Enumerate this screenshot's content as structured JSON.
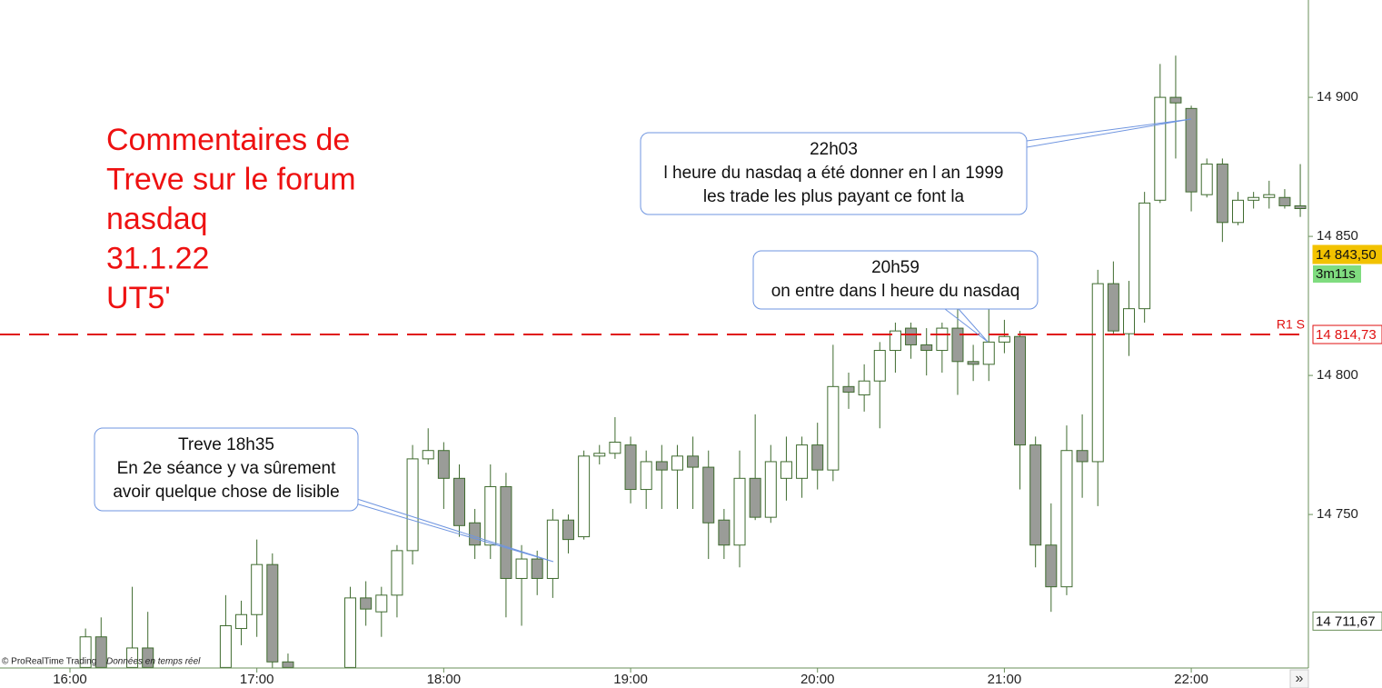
{
  "chart_data": {
    "type": "candlestick",
    "annotation_title": [
      "Commentaires de",
      "Treve sur le forum",
      "nasdaq",
      "31.1.22",
      "UT5'"
    ],
    "callouts": [
      {
        "lines": [
          "Treve 18h35",
          "En 2e séance y va sûrement",
          "avoir quelque chose de lisible"
        ]
      },
      {
        "lines": [
          "20h59",
          "on entre dans l heure du nasdaq"
        ]
      },
      {
        "lines": [
          "22h03",
          "l heure du nasdaq a été donner en l an 1999",
          "les trade les plus payant ce font la"
        ]
      }
    ],
    "categories": [
      "16:00",
      null,
      null,
      null,
      null,
      null,
      null,
      null,
      null,
      null,
      null,
      null,
      "17:00",
      null,
      null,
      null,
      null,
      null,
      null,
      null,
      null,
      null,
      null,
      null,
      "18:00",
      null,
      null,
      null,
      null,
      null,
      null,
      null,
      null,
      null,
      null,
      null,
      "19:00",
      null,
      null,
      null,
      null,
      null,
      null,
      null,
      null,
      null,
      null,
      null,
      "20:00",
      null,
      null,
      null,
      null,
      null,
      null,
      null,
      null,
      null,
      null,
      null,
      "21:00",
      null,
      null,
      null,
      null,
      null,
      null,
      null,
      null,
      null,
      null,
      null,
      "22:00",
      null,
      null,
      null,
      null,
      null,
      null,
      null
    ],
    "open": [
      null,
      14695,
      14706,
      null,
      14695,
      14702,
      null,
      null,
      null,
      null,
      14695,
      14709,
      14714,
      14732,
      14697,
      null,
      null,
      null,
      14695,
      14720,
      14715,
      14721,
      14737,
      14770,
      14773,
      14763,
      14747,
      14739,
      14760,
      14727,
      14734,
      14727,
      14748,
      14742,
      14771,
      14772,
      14775,
      14759,
      14769,
      14766,
      14771,
      14767,
      14748,
      14739,
      14763,
      14749,
      14763,
      14763,
      14775,
      14766,
      14796,
      14793,
      14798,
      14809,
      14817,
      14811,
      14809,
      14817,
      14805,
      14804,
      14812,
      14814,
      14775,
      14739,
      14724,
      14773,
      14769,
      14833,
      14815,
      14824,
      14863,
      14900,
      14896,
      14865,
      14876,
      14855,
      14863,
      14864,
      14864,
      14861
    ],
    "high": [
      null,
      14709,
      14713,
      null,
      14724,
      14715,
      null,
      null,
      null,
      null,
      14721,
      14719,
      14741,
      14736,
      14700,
      null,
      null,
      null,
      14724,
      14726,
      14724,
      14739,
      14775,
      14781,
      14776,
      14768,
      14752,
      14768,
      14765,
      14739,
      14737,
      14752,
      14750,
      14773,
      14775,
      14785,
      14778,
      14773,
      14775,
      14775,
      14778,
      14773,
      14752,
      14773,
      14786,
      14775,
      14778,
      14778,
      14783,
      14811,
      14801,
      14804,
      14812,
      14819,
      14819,
      14817,
      14819,
      14824,
      14811,
      14827,
      14820,
      14816,
      14778,
      14754,
      14782,
      14786,
      14838,
      14841,
      14834,
      14866,
      14912,
      14915,
      14897,
      14878,
      14878,
      14866,
      14866,
      14870,
      14867,
      14876
    ],
    "low": [
      null,
      14690,
      14690,
      null,
      14690,
      14690,
      null,
      null,
      null,
      null,
      14690,
      14703,
      14706,
      14690,
      14690,
      null,
      null,
      null,
      14690,
      14710,
      14706,
      14713,
      14732,
      14768,
      14752,
      14742,
      14734,
      14734,
      14713,
      14710,
      14721,
      14720,
      14736,
      14741,
      14768,
      14770,
      14754,
      14752,
      14752,
      14752,
      14752,
      14734,
      14734,
      14731,
      14748,
      14747,
      14755,
      14756,
      14759,
      14762,
      14788,
      14787,
      14781,
      14801,
      14806,
      14800,
      14801,
      14793,
      14798,
      14798,
      14808,
      14759,
      14731,
      14715,
      14721,
      14756,
      14753,
      14815,
      14807,
      14819,
      14862,
      14878,
      14859,
      14864,
      14848,
      14854,
      14860,
      14860,
      14860,
      14857
    ],
    "close": [
      null,
      14706,
      14695,
      null,
      14702,
      14695,
      null,
      null,
      null,
      null,
      14710,
      14714,
      14732,
      14697,
      14695,
      null,
      null,
      null,
      14720,
      14716,
      14721,
      14737,
      14770,
      14773,
      14763,
      14746,
      14739,
      14760,
      14727,
      14734,
      14727,
      14748,
      14741,
      14771,
      14772,
      14776,
      14759,
      14769,
      14766,
      14771,
      14767,
      14747,
      14739,
      14763,
      14749,
      14769,
      14769,
      14775,
      14766,
      14796,
      14794,
      14798,
      14809,
      14816,
      14811,
      14809,
      14817,
      14805,
      14804,
      14812,
      14814,
      14775,
      14739,
      14724,
      14773,
      14769,
      14833,
      14816,
      14824,
      14862,
      14900,
      14898,
      14866,
      14876,
      14855,
      14863,
      14864,
      14865,
      14861,
      14860
    ],
    "up_color": "#ffffff",
    "down_color": "#9a9c98",
    "wick_color": "#3f6b2f",
    "ylim": [
      14694.8,
      14935
    ],
    "yticks": [
      {
        "value": 14750,
        "label": "14 750"
      },
      {
        "value": 14800,
        "label": "14 800"
      },
      {
        "value": 14850,
        "label": "14 850"
      },
      {
        "value": 14900,
        "label": "14 900"
      }
    ],
    "reference_line": {
      "name": "R1 S",
      "value": 14814.73,
      "label": "14 814,73",
      "color": "#e01010"
    },
    "price_labels": [
      {
        "value": 14843.5,
        "label": "14 843,50",
        "color": "#f2c200"
      },
      {
        "value": 14711.67,
        "label": "14 711,67",
        "color": "#ffffff"
      }
    ],
    "timer": {
      "label": "3m11s",
      "color": "#7fdc7f"
    },
    "footer": [
      "© ProRealTime Trading",
      "Données en temps réel"
    ],
    "nav_button": "»"
  }
}
